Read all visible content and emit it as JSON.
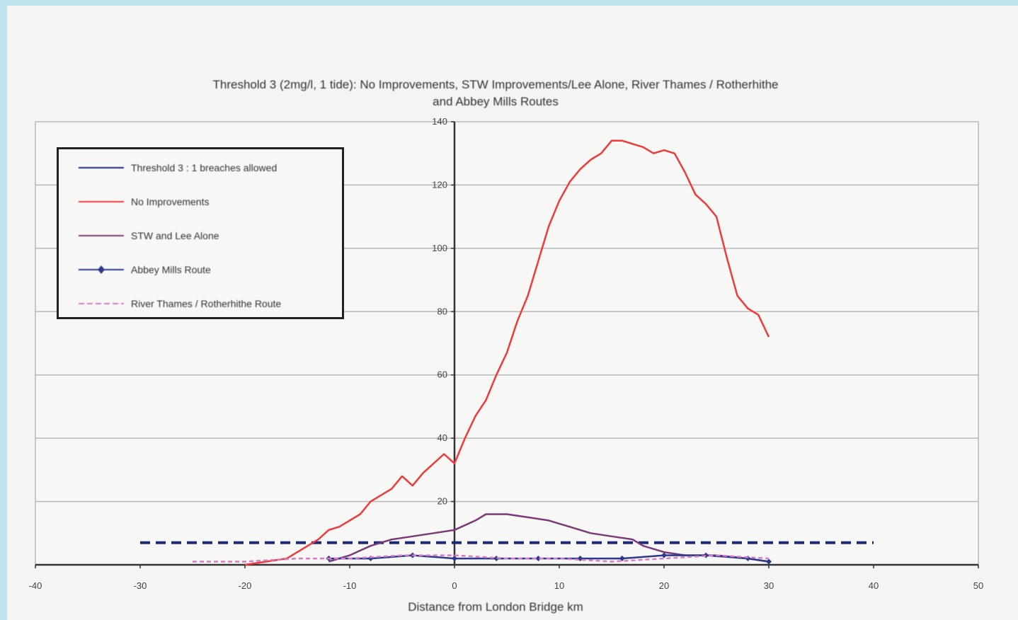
{
  "chart_data": {
    "type": "line",
    "title": "Threshold 3 (2mg/l, 1 tide): No Improvements, STW Improvements/Lee Alone, River Thames / Rotherhithe and Abbey Mills Routes",
    "title_lines": [
      "Threshold 3 (2mg/l, 1 tide): No Improvements, STW Improvements/Lee Alone, River Thames / Rotherhithe",
      "and Abbey Mills Routes"
    ],
    "xlabel": "Distance from London Bridge km",
    "ylabel": "",
    "xlim": [
      -40,
      50
    ],
    "ylim": [
      0,
      140
    ],
    "xticks": [
      -40,
      -30,
      -20,
      -10,
      0,
      10,
      20,
      30,
      40,
      50
    ],
    "yticks": [
      20,
      40,
      60,
      80,
      100,
      120,
      140
    ],
    "grid": true,
    "legend_position": "top-left",
    "series": [
      {
        "name": "Threshold 3 : 1 breaches allowed",
        "color": "#1c2a7a",
        "dash": "dashed",
        "x": [
          -30,
          40
        ],
        "y": [
          7,
          7
        ]
      },
      {
        "name": "No Improvements",
        "color": "#ee3a3a",
        "dash": "solid",
        "x": [
          -20,
          -16,
          -13,
          -12,
          -11,
          -10,
          -9,
          -8,
          -7,
          -6,
          -5,
          -4,
          -3,
          -2,
          -1,
          0,
          1,
          2,
          3,
          4,
          5,
          6,
          7,
          8,
          9,
          10,
          11,
          12,
          13,
          14,
          15,
          16,
          17,
          18,
          19,
          20,
          21,
          22,
          23,
          24,
          25,
          26,
          27,
          28,
          29,
          30
        ],
        "y": [
          0,
          2,
          8,
          11,
          12,
          14,
          16,
          20,
          22,
          24,
          28,
          25,
          29,
          32,
          35,
          32,
          40,
          47,
          52,
          60,
          67,
          77,
          85,
          96,
          107,
          115,
          121,
          125,
          128,
          130,
          134,
          134,
          133,
          132,
          130,
          131,
          130,
          124,
          117,
          114,
          110,
          97,
          85,
          81,
          79,
          72
        ]
      },
      {
        "name": "STW and Lee Alone",
        "color": "#7a3a78",
        "dash": "solid",
        "x": [
          -12,
          -10,
          -8,
          -6,
          -4,
          -2,
          0,
          2,
          3,
          5,
          7,
          9,
          10,
          11,
          13,
          15,
          17,
          18,
          20,
          22,
          25,
          28,
          30
        ],
        "y": [
          1,
          3,
          6,
          8,
          9,
          10,
          11,
          14,
          16,
          16,
          15,
          14,
          13,
          12,
          10,
          9,
          8,
          6,
          4,
          3,
          3,
          2,
          1
        ]
      },
      {
        "name": "Abbey Mills Route",
        "color": "#2b3a8a",
        "dash": "solid",
        "marker": "diamond",
        "x": [
          -12,
          -8,
          -4,
          0,
          4,
          8,
          12,
          16,
          20,
          24,
          28,
          30
        ],
        "y": [
          2,
          2,
          3,
          2,
          2,
          2,
          2,
          2,
          3,
          3,
          2,
          1
        ]
      },
      {
        "name": "River Thames / Rotherhithe Route",
        "color": "#d77ac8",
        "dash": "dashed",
        "x": [
          -25,
          -20,
          -15,
          -10,
          -5,
          0,
          5,
          10,
          15,
          20,
          25,
          30
        ],
        "y": [
          1,
          1,
          2,
          2,
          3,
          3,
          2,
          2,
          1,
          2,
          3,
          2
        ]
      }
    ]
  }
}
